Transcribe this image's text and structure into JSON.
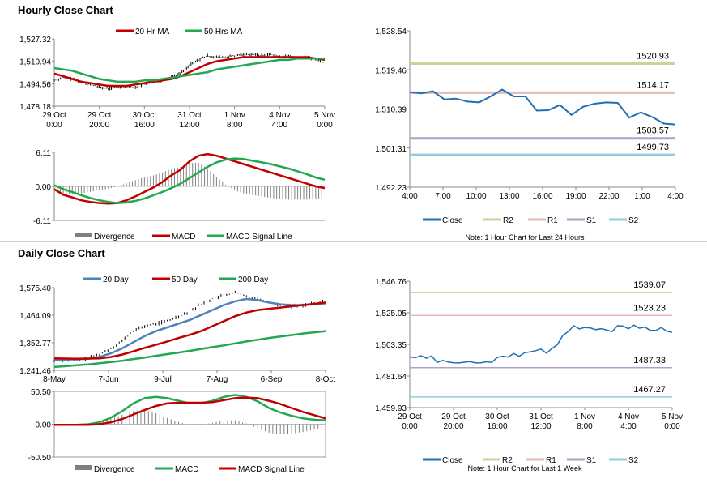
{
  "hourly_title": "Hourly Close Chart",
  "daily_title": "Daily Close Chart",
  "colors": {
    "red": "#c00000",
    "green": "#21a850",
    "blue": "#4f81bd",
    "close": "#1f6fb5",
    "r2": "#c4d79b",
    "r1": "#e6b8b7",
    "s1": "#b1a0c7",
    "s2": "#92cddc",
    "hist": "#7f7f7f"
  },
  "chart_data": [
    {
      "id": "hourly_price",
      "type": "line",
      "title": "Hourly Close Chart",
      "ylim": [
        1478.18,
        1527.32
      ],
      "yticks": [
        "1,527.32",
        "1,510.94",
        "1,494.56",
        "1,478.18"
      ],
      "xticks": [
        "29 Oct\n0:00",
        "29 Oct\n20:00",
        "30 Oct\n16:00",
        "31 Oct\n12:00",
        "1 Nov\n8:00",
        "4 Nov\n4:00",
        "5 Nov\n0:00"
      ],
      "legend": [
        "20 Hr MA",
        "50 Hrs MA"
      ],
      "series": [
        {
          "name": "Price",
          "values": [
            1497,
            1499,
            1498,
            1496,
            1494,
            1492,
            1491,
            1492,
            1493,
            1492,
            1494,
            1496,
            1497,
            1500,
            1502,
            1508,
            1512,
            1515,
            1514,
            1514,
            1515,
            1516,
            1516,
            1515,
            1516,
            1514,
            1515,
            1513,
            1514,
            1512,
            1510
          ]
        },
        {
          "name": "20 Hr MA",
          "values": [
            1502,
            1500,
            1498,
            1496,
            1495,
            1494,
            1493,
            1493,
            1493,
            1494,
            1495,
            1496,
            1497,
            1498,
            1500,
            1503,
            1506,
            1509,
            1511,
            1512,
            1513,
            1514,
            1514,
            1514,
            1514,
            1514,
            1514,
            1514,
            1514,
            1513,
            1512
          ]
        },
        {
          "name": "50 Hrs MA",
          "values": [
            1506,
            1505,
            1504,
            1502,
            1500,
            1498,
            1497,
            1496,
            1496,
            1496,
            1497,
            1497,
            1498,
            1499,
            1500,
            1501,
            1502,
            1503,
            1505,
            1506,
            1507,
            1508,
            1509,
            1510,
            1511,
            1512,
            1512,
            1513,
            1513,
            1513,
            1513
          ]
        }
      ]
    },
    {
      "id": "hourly_macd",
      "type": "line",
      "ylim": [
        -6.11,
        6.11
      ],
      "yticks": [
        "6.11",
        "0.00",
        "-6.11"
      ],
      "legend": [
        "Divergence",
        "MACD",
        "MACD Signal Line"
      ],
      "series": [
        {
          "name": "MACD",
          "values": [
            -0.5,
            -1.5,
            -2,
            -2.5,
            -2.8,
            -3,
            -3.1,
            -3,
            -2.5,
            -1.8,
            -1,
            -0.2,
            0.8,
            2,
            3,
            4.5,
            5.5,
            5.8,
            5.5,
            5,
            4.5,
            4,
            3.5,
            3,
            2.5,
            2,
            1.5,
            1,
            0.5,
            0,
            -0.3
          ]
        },
        {
          "name": "MACD Signal Line",
          "values": [
            0.2,
            -0.5,
            -1,
            -1.6,
            -2.1,
            -2.5,
            -2.8,
            -3,
            -2.9,
            -2.6,
            -2.2,
            -1.6,
            -1,
            -0.3,
            0.5,
            1.5,
            2.5,
            3.5,
            4.3,
            4.8,
            5,
            4.9,
            4.6,
            4.3,
            4,
            3.6,
            3.2,
            2.7,
            2.2,
            1.6,
            1.2
          ]
        }
      ]
    },
    {
      "id": "hourly_pivot",
      "type": "line",
      "ylim": [
        1492.23,
        1528.54
      ],
      "yticks": [
        "1,528.54",
        "1,519.46",
        "1,510.39",
        "1,501.31",
        "1,492.23"
      ],
      "xticks": [
        "4:00",
        "7:00",
        "10:00",
        "13:00",
        "16:00",
        "19:00",
        "22:00",
        "1:00",
        "4:00"
      ],
      "legend": [
        "Close",
        "R2",
        "R1",
        "S1",
        "S2"
      ],
      "note": "Note: 1 Hour Chart for Last 24 Hours",
      "levels": [
        {
          "name": "R2",
          "value": 1520.93,
          "label": "1520.93"
        },
        {
          "name": "R1",
          "value": 1514.17,
          "label": "1514.17"
        },
        {
          "name": "S1",
          "value": 1503.57,
          "label": "1503.57"
        },
        {
          "name": "S2",
          "value": 1499.73,
          "label": "1499.73"
        }
      ],
      "series": [
        {
          "name": "Close",
          "values": [
            1514.3,
            1514.0,
            1514.5,
            1512.6,
            1512.8,
            1512.1,
            1511.9,
            1513.3,
            1514.9,
            1513.3,
            1513.3,
            1510.0,
            1510.1,
            1511.3,
            1509.0,
            1510.9,
            1511.6,
            1511.9,
            1511.8,
            1508.4,
            1509.6,
            1508.5,
            1507.0,
            1506.8
          ]
        }
      ]
    },
    {
      "id": "daily_price",
      "type": "line",
      "title": "Daily Close Chart",
      "ylim": [
        1241.46,
        1575.4
      ],
      "yticks": [
        "1,575.40",
        "1,464.09",
        "1,352.77",
        "1,241.46"
      ],
      "xticks": [
        "8-May",
        "7-Jun",
        "9-Jul",
        "7-Aug",
        "6-Sep",
        "8-Oct"
      ],
      "legend": [
        "20 Day",
        "50 Day",
        "200 Day"
      ],
      "series": [
        {
          "name": "Price",
          "values": [
            1280,
            1285,
            1282,
            1290,
            1305,
            1330,
            1360,
            1400,
            1420,
            1430,
            1440,
            1460,
            1480,
            1510,
            1530,
            1545,
            1555,
            1540,
            1530,
            1520,
            1505,
            1500,
            1505,
            1510,
            1520
          ]
        },
        {
          "name": "20 Day",
          "values": [
            1285,
            1285,
            1286,
            1288,
            1295,
            1310,
            1330,
            1355,
            1380,
            1400,
            1415,
            1430,
            1445,
            1465,
            1485,
            1505,
            1520,
            1530,
            1525,
            1515,
            1508,
            1505,
            1505,
            1508,
            1512
          ]
        },
        {
          "name": "50 Day",
          "values": [
            1290,
            1289,
            1288,
            1289,
            1290,
            1295,
            1305,
            1318,
            1332,
            1345,
            1358,
            1372,
            1385,
            1400,
            1420,
            1440,
            1460,
            1475,
            1485,
            1490,
            1495,
            1500,
            1505,
            1510,
            1515
          ]
        },
        {
          "name": "200 Day",
          "values": [
            1255,
            1258,
            1262,
            1265,
            1270,
            1275,
            1280,
            1287,
            1293,
            1300,
            1307,
            1313,
            1320,
            1328,
            1335,
            1342,
            1350,
            1358,
            1365,
            1372,
            1378,
            1384,
            1390,
            1395,
            1400
          ]
        }
      ]
    },
    {
      "id": "daily_macd",
      "type": "line",
      "ylim": [
        -50.5,
        50.5
      ],
      "yticks": [
        "50.50",
        "0.00",
        "-50.50"
      ],
      "legend": [
        "Divergence",
        "MACD",
        "MACD Signal Line"
      ],
      "series": [
        {
          "name": "MACD",
          "values": [
            -1,
            -1,
            -1,
            0,
            3,
            10,
            20,
            32,
            40,
            42,
            40,
            36,
            32,
            32,
            36,
            42,
            45,
            42,
            35,
            25,
            18,
            13,
            9,
            7,
            6
          ]
        },
        {
          "name": "MACD Signal Line",
          "values": [
            -1,
            -1,
            -1,
            -1,
            0,
            3,
            8,
            15,
            22,
            28,
            32,
            33,
            33,
            33,
            34,
            37,
            40,
            41,
            40,
            36,
            31,
            25,
            19,
            14,
            9
          ]
        }
      ]
    },
    {
      "id": "daily_pivot",
      "type": "line",
      "ylim": [
        1459.93,
        1546.76
      ],
      "yticks": [
        "1,546.76",
        "1,525.05",
        "1,503.35",
        "1,481.64",
        "1,459.93"
      ],
      "xticks": [
        "29 Oct\n0:00",
        "29 Oct\n20:00",
        "30 Oct\n16:00",
        "31 Oct\n12:00",
        "1 Nov\n8:00",
        "4 Nov\n4:00",
        "5 Nov\n0:00"
      ],
      "legend": [
        "Close",
        "R2",
        "R1",
        "S1",
        "S2"
      ],
      "note": "Note: 1 Hour Chart for Last 1 Week",
      "levels": [
        {
          "name": "R2",
          "value": 1539.07,
          "label": "1539.07"
        },
        {
          "name": "R1",
          "value": 1523.23,
          "label": "1523.23"
        },
        {
          "name": "S1",
          "value": 1487.33,
          "label": "1487.33"
        },
        {
          "name": "S2",
          "value": 1467.27,
          "label": "1467.27"
        }
      ],
      "series": [
        {
          "name": "Close",
          "values": [
            1494.8,
            1494.2,
            1495.6,
            1493.8,
            1495.4,
            1490.9,
            1492.3,
            1491.3,
            1490.7,
            1490.6,
            1491.1,
            1491.5,
            1490.6,
            1490.7,
            1491.4,
            1491.0,
            1494.4,
            1495.2,
            1494.6,
            1497.1,
            1495.1,
            1497.6,
            1498.2,
            1499.0,
            1500.1,
            1497.3,
            1500.5,
            1503.2,
            1509.5,
            1512.2,
            1516.2,
            1514.0,
            1514.9,
            1514.7,
            1513.5,
            1514.1,
            1513.3,
            1512.1,
            1516.2,
            1515.9,
            1514.1,
            1516.6,
            1514.4,
            1515.2,
            1512.9,
            1512.9,
            1514.9,
            1512.4,
            1511.5
          ]
        }
      ]
    }
  ]
}
